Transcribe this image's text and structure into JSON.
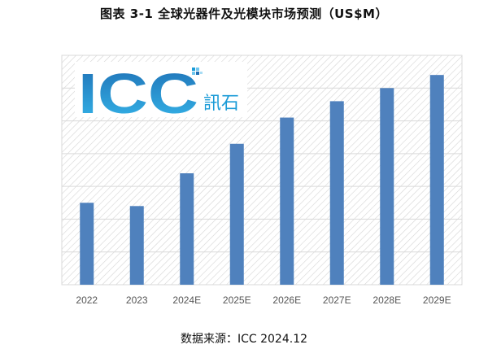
{
  "figure": {
    "title": "图表 3-1    全球光器件及光模块市场预测（US$M）",
    "source": "数据来源：ICC 2024.12"
  },
  "logo": {
    "letters": "ICC",
    "chinese": "訊石"
  },
  "colors": {
    "bar": "#4f81bd",
    "hatch": "#d4d4d4",
    "plot_border": "#d9d9d9",
    "logo_blue": "#1a9bd7",
    "logo_dark": "#1f6fb4"
  },
  "chart_data": {
    "type": "bar",
    "categories": [
      "2022",
      "2023",
      "2024E",
      "2025E",
      "2026E",
      "2027E",
      "2028E",
      "2029E"
    ],
    "values": [
      12.5,
      12.0,
      17.0,
      21.5,
      25.5,
      28.0,
      30.0,
      32.0
    ],
    "ylim": [
      0,
      35
    ],
    "grid": true,
    "legend": "none",
    "xlabel": "",
    "ylabel": ""
  }
}
